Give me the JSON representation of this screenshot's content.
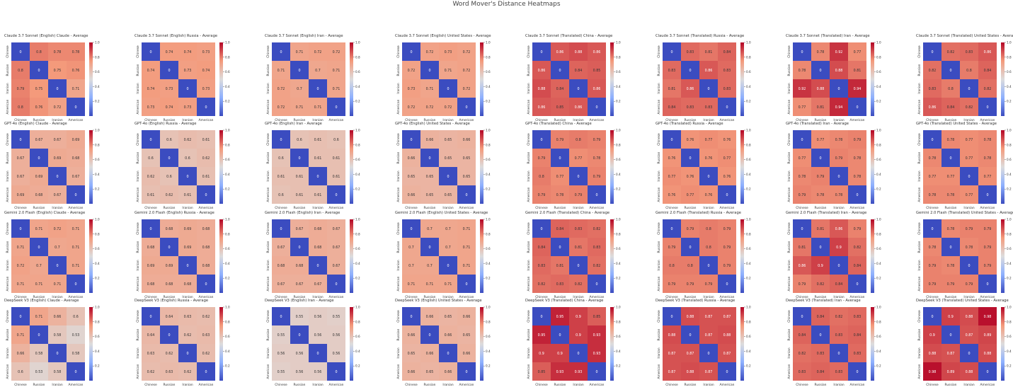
{
  "suptitle": "Word Mover's Distance Heatmaps",
  "chart_data": {
    "type": "heatmap",
    "colormap": "coolwarm",
    "rows": [
      {
        "title_prefix": "Claude 3.7 Sonnet"
      },
      {
        "title_prefix": "GPT-4o"
      },
      {
        "title_prefix": "Gemini 2.0 Flash"
      },
      {
        "title_prefix": "DeepSeek V3"
      }
    ],
    "columns": [
      {
        "label": "(English) Claude - Average",
        "categories": [
          "Chinese",
          "Russian",
          "Iranian",
          "American"
        ],
        "vmin": 0,
        "vmax": 1.0,
        "colorbar_ticks": [
          "0.2",
          "0.4",
          "0.6",
          "0.8",
          "1.0"
        ]
      },
      {
        "label": "(English) Russia - Average",
        "categories": [
          "Chinese",
          "Russian",
          "Iranian",
          "American"
        ],
        "vmin": 0,
        "vmax": 1.0,
        "colorbar_ticks": [
          "0.2",
          "0.4",
          "0.6",
          "0.8",
          "1.0"
        ]
      },
      {
        "label": "(English) Iran - Average",
        "categories": [
          "Chinese",
          "Russian",
          "Iranian",
          "American"
        ],
        "vmin": 0,
        "vmax": 1.0,
        "colorbar_ticks": [
          "0.2",
          "0.4",
          "0.6",
          "0.8",
          "1.0"
        ]
      },
      {
        "label": "(English) United States - Average",
        "categories": [
          "Chinese",
          "Russian",
          "Iranian",
          "American"
        ],
        "vmin": 0,
        "vmax": 1.0,
        "colorbar_ticks": [
          "0.2",
          "0.4",
          "0.6",
          "0.8",
          "1.0"
        ]
      },
      {
        "label": "(Translated) China - Average",
        "categories": [
          "Chinese",
          "Russian",
          "Iranian",
          "American"
        ],
        "vmin": 0,
        "vmax": 1.0,
        "colorbar_ticks": [
          "0.2",
          "0.4",
          "0.6",
          "0.8",
          "1.0"
        ]
      },
      {
        "label": "(Translated) Russia - Average",
        "categories": [
          "Chinese",
          "Russian",
          "Iranian",
          "American"
        ],
        "vmin": 0,
        "vmax": 1.0,
        "colorbar_ticks": [
          "0.2",
          "0.4",
          "0.6",
          "0.8",
          "1.0"
        ]
      },
      {
        "label": "(Translated) Iran - Average",
        "categories": [
          "Chinese",
          "Russian",
          "Iranian",
          "American"
        ],
        "vmin": 0,
        "vmax": 1.0,
        "colorbar_ticks": [
          "0.2",
          "0.4",
          "0.6",
          "0.8",
          "1.0"
        ]
      },
      {
        "label": "(Translated) United States - Average",
        "categories": [
          "Chinese",
          "Russian",
          "Iranian",
          "American"
        ],
        "vmin": 0,
        "vmax": 1.0,
        "colorbar_ticks": [
          "0.2",
          "0.4",
          "0.6",
          "0.8",
          "1.0"
        ]
      }
    ],
    "panels": [
      [
        {
          "values": [
            [
              0,
              0.8,
              0.78,
              0.78
            ],
            [
              0.8,
              0,
              0.75,
              0.76
            ],
            [
              0.79,
              0.75,
              0,
              0.71
            ],
            [
              0.8,
              0.76,
              0.72,
              0
            ]
          ]
        },
        {
          "values": [
            [
              0,
              0.74,
              0.74,
              0.73
            ],
            [
              0.74,
              0,
              0.73,
              0.74
            ],
            [
              0.74,
              0.73,
              0,
              0.73
            ],
            [
              0.73,
              0.74,
              0.73,
              0
            ]
          ]
        },
        {
          "values": [
            [
              0,
              0.71,
              0.72,
              0.72
            ],
            [
              0.71,
              0,
              0.7,
              0.71
            ],
            [
              0.72,
              0.7,
              0,
              0.71
            ],
            [
              0.72,
              0.71,
              0.71,
              0
            ]
          ]
        },
        {
          "values": [
            [
              0,
              0.72,
              0.73,
              0.72
            ],
            [
              0.72,
              0,
              0.71,
              0.72
            ],
            [
              0.73,
              0.71,
              0,
              0.72
            ],
            [
              0.72,
              0.72,
              0.72,
              0
            ]
          ]
        },
        {
          "values": [
            [
              0,
              0.86,
              0.88,
              0.86
            ],
            [
              0.86,
              0,
              0.84,
              0.85
            ],
            [
              0.88,
              0.84,
              0,
              0.86
            ],
            [
              0.86,
              0.85,
              0.86,
              0
            ]
          ]
        },
        {
          "values": [
            [
              0,
              0.83,
              0.81,
              0.84
            ],
            [
              0.83,
              0,
              0.86,
              0.83
            ],
            [
              0.81,
              0.86,
              0,
              0.83
            ],
            [
              0.84,
              0.83,
              0.83,
              0
            ]
          ]
        },
        {
          "values": [
            [
              0,
              0.78,
              0.92,
              0.77
            ],
            [
              0.78,
              0,
              0.88,
              0.81
            ],
            [
              0.92,
              0.88,
              0,
              0.94
            ],
            [
              0.77,
              0.81,
              0.94,
              0
            ]
          ]
        },
        {
          "values": [
            [
              0,
              0.82,
              0.83,
              0.86
            ],
            [
              0.82,
              0,
              0.8,
              0.84
            ],
            [
              0.83,
              0.8,
              0,
              0.82
            ],
            [
              0.86,
              0.84,
              0.82,
              0
            ]
          ]
        }
      ],
      [
        {
          "values": [
            [
              0,
              0.67,
              0.67,
              0.69
            ],
            [
              0.67,
              0,
              0.69,
              0.68
            ],
            [
              0.67,
              0.69,
              0,
              0.67
            ],
            [
              0.69,
              0.68,
              0.67,
              0
            ]
          ]
        },
        {
          "values": [
            [
              0,
              0.6,
              0.62,
              0.61
            ],
            [
              0.6,
              0,
              0.6,
              0.62
            ],
            [
              0.62,
              0.6,
              0,
              0.61
            ],
            [
              0.61,
              0.62,
              0.61,
              0
            ]
          ]
        },
        {
          "values": [
            [
              0,
              0.6,
              0.61,
              0.6
            ],
            [
              0.6,
              0,
              0.61,
              0.61
            ],
            [
              0.61,
              0.61,
              0,
              0.61
            ],
            [
              0.6,
              0.61,
              0.61,
              0
            ]
          ]
        },
        {
          "values": [
            [
              0,
              0.66,
              0.65,
              0.66
            ],
            [
              0.66,
              0,
              0.65,
              0.65
            ],
            [
              0.65,
              0.65,
              0,
              0.65
            ],
            [
              0.66,
              0.65,
              0.65,
              0
            ]
          ]
        },
        {
          "values": [
            [
              0,
              0.79,
              0.8,
              0.79
            ],
            [
              0.79,
              0,
              0.77,
              0.78
            ],
            [
              0.8,
              0.77,
              0,
              0.79
            ],
            [
              0.79,
              0.78,
              0.79,
              0
            ]
          ]
        },
        {
          "values": [
            [
              0,
              0.76,
              0.77,
              0.76
            ],
            [
              0.76,
              0,
              0.76,
              0.77
            ],
            [
              0.77,
              0.76,
              0,
              0.76
            ],
            [
              0.76,
              0.77,
              0.76,
              0
            ]
          ]
        },
        {
          "values": [
            [
              0,
              0.77,
              0.78,
              0.79
            ],
            [
              0.77,
              0,
              0.79,
              0.78
            ],
            [
              0.78,
              0.79,
              0,
              0.78
            ],
            [
              0.79,
              0.78,
              0.78,
              0
            ]
          ]
        },
        {
          "values": [
            [
              0,
              0.78,
              0.77,
              0.78
            ],
            [
              0.78,
              0,
              0.77,
              0.78
            ],
            [
              0.77,
              0.77,
              0,
              0.77
            ],
            [
              0.78,
              0.78,
              0.77,
              0
            ]
          ]
        }
      ],
      [
        {
          "values": [
            [
              0,
              0.71,
              0.72,
              0.71
            ],
            [
              0.71,
              0,
              0.7,
              0.71
            ],
            [
              0.72,
              0.7,
              0,
              0.71
            ],
            [
              0.71,
              0.71,
              0.71,
              0
            ]
          ]
        },
        {
          "values": [
            [
              0,
              0.68,
              0.69,
              0.68
            ],
            [
              0.68,
              0,
              0.69,
              0.68
            ],
            [
              0.69,
              0.69,
              0,
              0.68
            ],
            [
              0.68,
              0.68,
              0.68,
              0
            ]
          ]
        },
        {
          "values": [
            [
              0,
              0.67,
              0.68,
              0.67
            ],
            [
              0.67,
              0,
              0.68,
              0.67
            ],
            [
              0.68,
              0.68,
              0,
              0.67
            ],
            [
              0.67,
              0.67,
              0.67,
              0
            ]
          ]
        },
        {
          "values": [
            [
              0,
              0.7,
              0.7,
              0.71
            ],
            [
              0.7,
              0,
              0.7,
              0.71
            ],
            [
              0.7,
              0.7,
              0,
              0.71
            ],
            [
              0.71,
              0.71,
              0.71,
              0
            ]
          ]
        },
        {
          "values": [
            [
              0,
              0.84,
              0.83,
              0.82
            ],
            [
              0.84,
              0,
              0.81,
              0.83
            ],
            [
              0.83,
              0.81,
              0,
              0.82
            ],
            [
              0.82,
              0.83,
              0.82,
              0
            ]
          ]
        },
        {
          "values": [
            [
              0,
              0.79,
              0.8,
              0.79
            ],
            [
              0.79,
              0,
              0.8,
              0.79
            ],
            [
              0.8,
              0.8,
              0,
              0.79
            ],
            [
              0.79,
              0.79,
              0.79,
              0
            ]
          ]
        },
        {
          "values": [
            [
              0,
              0.81,
              0.86,
              0.79
            ],
            [
              0.81,
              0,
              0.9,
              0.82
            ],
            [
              0.86,
              0.9,
              0,
              0.84
            ],
            [
              0.79,
              0.82,
              0.84,
              0
            ]
          ]
        },
        {
          "values": [
            [
              0,
              0.78,
              0.79,
              0.79
            ],
            [
              0.78,
              0,
              0.78,
              0.79
            ],
            [
              0.79,
              0.78,
              0,
              0.79
            ],
            [
              0.79,
              0.79,
              0.79,
              0
            ]
          ]
        }
      ],
      [
        {
          "values": [
            [
              0,
              0.71,
              0.66,
              0.6
            ],
            [
              0.71,
              0,
              0.58,
              0.53
            ],
            [
              0.66,
              0.58,
              0,
              0.58
            ],
            [
              0.6,
              0.53,
              0.58,
              0
            ]
          ]
        },
        {
          "values": [
            [
              0,
              0.64,
              0.63,
              0.62
            ],
            [
              0.64,
              0,
              0.62,
              0.63
            ],
            [
              0.63,
              0.62,
              0,
              0.62
            ],
            [
              0.62,
              0.63,
              0.62,
              0
            ]
          ]
        },
        {
          "values": [
            [
              0,
              0.55,
              0.56,
              0.55
            ],
            [
              0.55,
              0,
              0.56,
              0.56
            ],
            [
              0.56,
              0.56,
              0,
              0.56
            ],
            [
              0.55,
              0.56,
              0.56,
              0
            ]
          ]
        },
        {
          "values": [
            [
              0,
              0.66,
              0.65,
              0.66
            ],
            [
              0.66,
              0,
              0.66,
              0.65
            ],
            [
              0.65,
              0.66,
              0,
              0.66
            ],
            [
              0.66,
              0.65,
              0.66,
              0
            ]
          ]
        },
        {
          "values": [
            [
              0,
              0.95,
              0.9,
              0.85
            ],
            [
              0.95,
              0,
              0.9,
              0.93
            ],
            [
              0.9,
              0.9,
              0,
              0.93
            ],
            [
              0.85,
              0.93,
              0.93,
              0
            ]
          ]
        },
        {
          "values": [
            [
              0,
              0.88,
              0.87,
              0.87
            ],
            [
              0.88,
              0,
              0.87,
              0.88
            ],
            [
              0.87,
              0.87,
              0,
              0.87
            ],
            [
              0.87,
              0.88,
              0.87,
              0
            ]
          ]
        },
        {
          "values": [
            [
              0,
              0.84,
              0.82,
              0.83
            ],
            [
              0.84,
              0,
              0.83,
              0.84
            ],
            [
              0.82,
              0.83,
              0,
              0.83
            ],
            [
              0.83,
              0.84,
              0.83,
              0
            ]
          ]
        },
        {
          "values": [
            [
              0,
              0.9,
              0.88,
              0.98
            ],
            [
              0.9,
              0,
              0.87,
              0.89
            ],
            [
              0.88,
              0.87,
              0,
              0.88
            ],
            [
              0.98,
              0.89,
              0.88,
              0
            ]
          ]
        }
      ]
    ]
  }
}
